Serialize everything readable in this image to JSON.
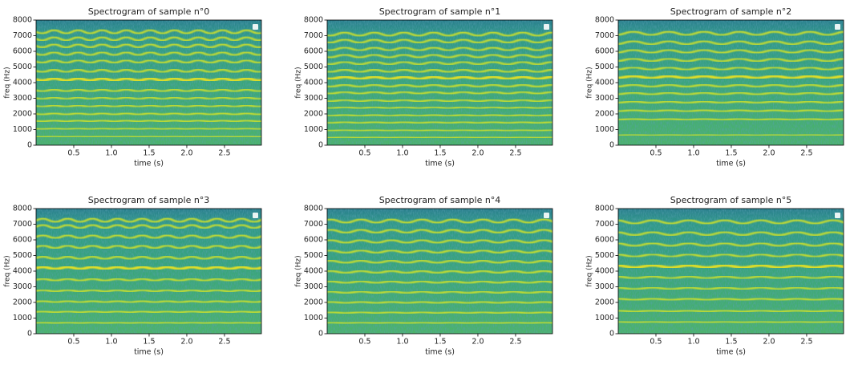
{
  "chart_data": [
    {
      "type": "spectrogram",
      "title": "Spectrogram of sample n°0",
      "xlabel": "time (s)",
      "ylabel": "freq (Hz)",
      "xlim": [
        0,
        2.99
      ],
      "ylim": [
        0,
        8000
      ],
      "xticks": [
        0.5,
        {
          "value": 1,
          "label": "1.0"
        },
        1.5,
        {
          "value": 2,
          "label": "2.0"
        },
        2.5
      ],
      "yticks": [
        0,
        1000,
        2000,
        3000,
        4000,
        5000,
        6000,
        7000,
        8000
      ],
      "harmonics": [
        550,
        1050,
        1550,
        2000,
        2500,
        3000,
        3500,
        4200,
        4750,
        5350,
        5850,
        6350,
        6800,
        7250
      ]
    },
    {
      "type": "spectrogram",
      "title": "Spectrogram of sample n°1",
      "xlabel": "time (s)",
      "ylabel": "freq (Hz)",
      "xlim": [
        0,
        2.99
      ],
      "ylim": [
        0,
        8000
      ],
      "xticks": [
        0.5,
        {
          "value": 1,
          "label": "1.0"
        },
        1.5,
        {
          "value": 2,
          "label": "2.0"
        },
        2.5
      ],
      "yticks": [
        0,
        1000,
        2000,
        3000,
        4000,
        5000,
        6000,
        7000,
        8000
      ],
      "harmonics": [
        500,
        950,
        1450,
        1900,
        2400,
        2850,
        3350,
        3800,
        4300,
        4750,
        5250,
        5700,
        6150,
        6650,
        7100
      ]
    },
    {
      "type": "spectrogram",
      "title": "Spectrogram of sample n°2",
      "xlabel": "time (s)",
      "ylabel": "freq (Hz)",
      "xlim": [
        0,
        2.99
      ],
      "ylim": [
        0,
        8000
      ],
      "xticks": [
        0.5,
        {
          "value": 1,
          "label": "1.0"
        },
        1.5,
        {
          "value": 2,
          "label": "2.0"
        },
        2.5
      ],
      "yticks": [
        0,
        1000,
        2000,
        3000,
        4000,
        5000,
        6000,
        7000,
        8000
      ],
      "harmonics": [
        650,
        1650,
        2200,
        2750,
        3300,
        3800,
        4350,
        4900,
        5450,
        6000,
        6550,
        7150
      ]
    },
    {
      "type": "spectrogram",
      "title": "Spectrogram of sample n°3",
      "xlabel": "time (s)",
      "ylabel": "freq (Hz)",
      "xlim": [
        0,
        2.99
      ],
      "ylim": [
        0,
        8000
      ],
      "xticks": [
        0.5,
        {
          "value": 1,
          "label": "1.0"
        },
        1.5,
        {
          "value": 2,
          "label": "2.0"
        },
        2.5
      ],
      "yticks": [
        0,
        1000,
        2000,
        3000,
        4000,
        5000,
        6000,
        7000,
        8000
      ],
      "harmonics": [
        700,
        1400,
        2050,
        2750,
        3450,
        4200,
        4850,
        5550,
        6200,
        6850,
        7250
      ]
    },
    {
      "type": "spectrogram",
      "title": "Spectrogram of sample n°4",
      "xlabel": "time (s)",
      "ylabel": "freq (Hz)",
      "xlim": [
        0,
        2.99
      ],
      "ylim": [
        0,
        8000
      ],
      "xticks": [
        0.5,
        {
          "value": 1,
          "label": "1.0"
        },
        1.5,
        {
          "value": 2,
          "label": "2.0"
        },
        2.5
      ],
      "yticks": [
        0,
        1000,
        2000,
        3000,
        4000,
        5000,
        6000,
        7000,
        8000
      ],
      "harmonics": [
        700,
        1350,
        2000,
        2650,
        3300,
        3950,
        4600,
        5250,
        5900,
        6550,
        7200
      ]
    },
    {
      "type": "spectrogram",
      "title": "Spectrogram of sample n°5",
      "xlabel": "time (s)",
      "ylabel": "freq (Hz)",
      "xlim": [
        0,
        2.99
      ],
      "ylim": [
        0,
        8000
      ],
      "xticks": [
        0.5,
        {
          "value": 1,
          "label": "1.0"
        },
        1.5,
        {
          "value": 2,
          "label": "2.0"
        },
        2.5
      ],
      "yticks": [
        0,
        1000,
        2000,
        3000,
        4000,
        5000,
        6000,
        7000,
        8000
      ],
      "harmonics": [
        750,
        1450,
        2200,
        2900,
        3600,
        4300,
        5000,
        5700,
        6400,
        7150
      ]
    }
  ]
}
